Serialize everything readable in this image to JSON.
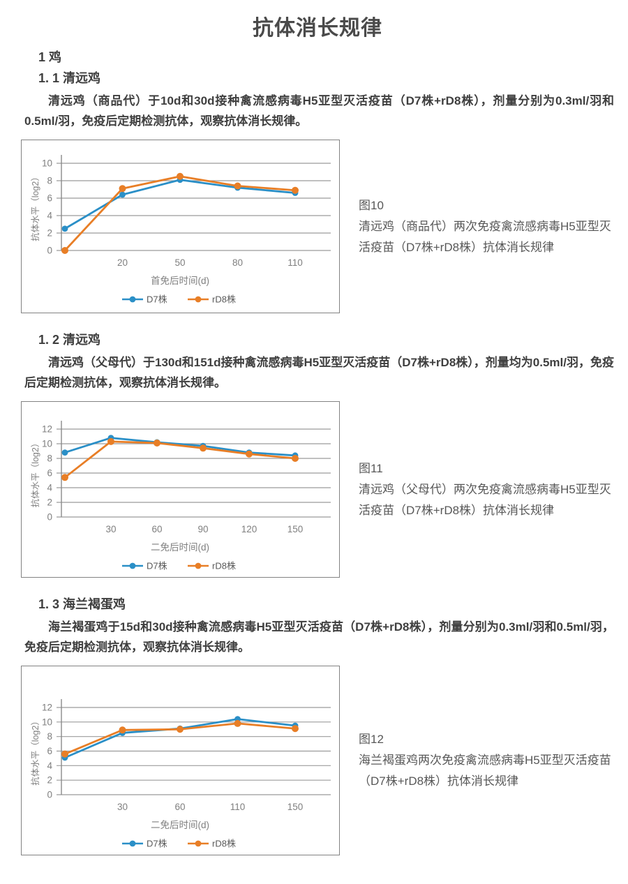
{
  "document": {
    "title": "抗体消长规律",
    "section": {
      "heading": "1 鸡"
    },
    "subsections": [
      {
        "heading": "1. 1 清远鸡",
        "paragraph": "清远鸡（商品代）于10d和30d接种禽流感病毒H5亚型灭活疫苗（D7株+rD8株），剂量分别为0.3ml/羽和0.5ml/羽，免疫后定期检测抗体，观察抗体消长规律。"
      },
      {
        "heading": "1. 2 清远鸡",
        "paragraph": "清远鸡（父母代）于130d和151d接种禽流感病毒H5亚型灭活疫苗（D7株+rD8株），剂量均为0.5ml/羽，免疫后定期检测抗体，观察抗体消长规律。"
      },
      {
        "heading": "1. 3 海兰褐蛋鸡",
        "paragraph": "海兰褐蛋鸡于15d和30d接种禽流感病毒H5亚型灭活疫苗（D7株+rD8株），剂量分别为0.3ml/羽和0.5ml/羽，免疫后定期检测抗体，观察抗体消长规律。"
      }
    ]
  },
  "chart_data": [
    {
      "type": "line",
      "figure_label": "图10",
      "title": "清远鸡（商品代）两次免疫禽流感病毒H5亚型灭活疫苗（D7株+rD8株）抗体消长规律",
      "xlabel": "首免后时间(d)",
      "ylabel": "抗体水平（log2）",
      "x_categories": [
        "",
        "20",
        "50",
        "80",
        "110"
      ],
      "y_ticks": [
        0,
        2,
        4,
        6,
        8,
        10
      ],
      "ylim": [
        0,
        10
      ],
      "grid": true,
      "legend_position": "bottom",
      "series": [
        {
          "name": "D7株",
          "values": [
            2.5,
            6.4,
            8.1,
            7.2,
            6.6
          ]
        },
        {
          "name": "rD8株",
          "values": [
            0.0,
            7.1,
            8.5,
            7.4,
            6.9
          ]
        }
      ]
    },
    {
      "type": "line",
      "figure_label": "图11",
      "title": "清远鸡（父母代）两次免疫禽流感病毒H5亚型灭活疫苗（D7株+rD8株）抗体消长规律",
      "xlabel": "二免后时间(d)",
      "ylabel": "抗体水平（log2）",
      "x_categories": [
        "",
        "30",
        "60",
        "90",
        "120",
        "150"
      ],
      "y_ticks": [
        0,
        2,
        4,
        6,
        8,
        10,
        12
      ],
      "ylim": [
        0,
        12
      ],
      "grid": true,
      "legend_position": "bottom",
      "series": [
        {
          "name": "D7株",
          "values": [
            8.8,
            10.8,
            10.2,
            9.7,
            8.8,
            8.4
          ]
        },
        {
          "name": "rD8株",
          "values": [
            5.4,
            10.3,
            10.1,
            9.4,
            8.6,
            8.0
          ]
        }
      ]
    },
    {
      "type": "line",
      "figure_label": "图12",
      "title": "海兰褐蛋鸡两次免疫禽流感病毒H5亚型灭活疫苗（D7株+rD8株）抗体消长规律",
      "xlabel": "二免后时间(d)",
      "ylabel": "抗体水平（log2）",
      "x_categories": [
        "",
        "30",
        "60",
        "110",
        "150"
      ],
      "y_ticks": [
        0,
        2,
        4,
        6,
        8,
        10,
        12
      ],
      "ylim": [
        0,
        12
      ],
      "grid": true,
      "legend_position": "bottom",
      "series": [
        {
          "name": "D7株",
          "values": [
            5.1,
            8.5,
            9.1,
            10.4,
            9.5
          ]
        },
        {
          "name": "rD8株",
          "values": [
            5.6,
            8.9,
            9.0,
            9.8,
            9.1
          ]
        }
      ]
    }
  ],
  "colors": {
    "series_d7": "#2A8FC7",
    "series_rd8": "#E87E26",
    "gridline": "#9b9b9b",
    "axis": "#8a8a8a",
    "chart_text": "#7f7f7f",
    "legend_text": "#595959"
  }
}
